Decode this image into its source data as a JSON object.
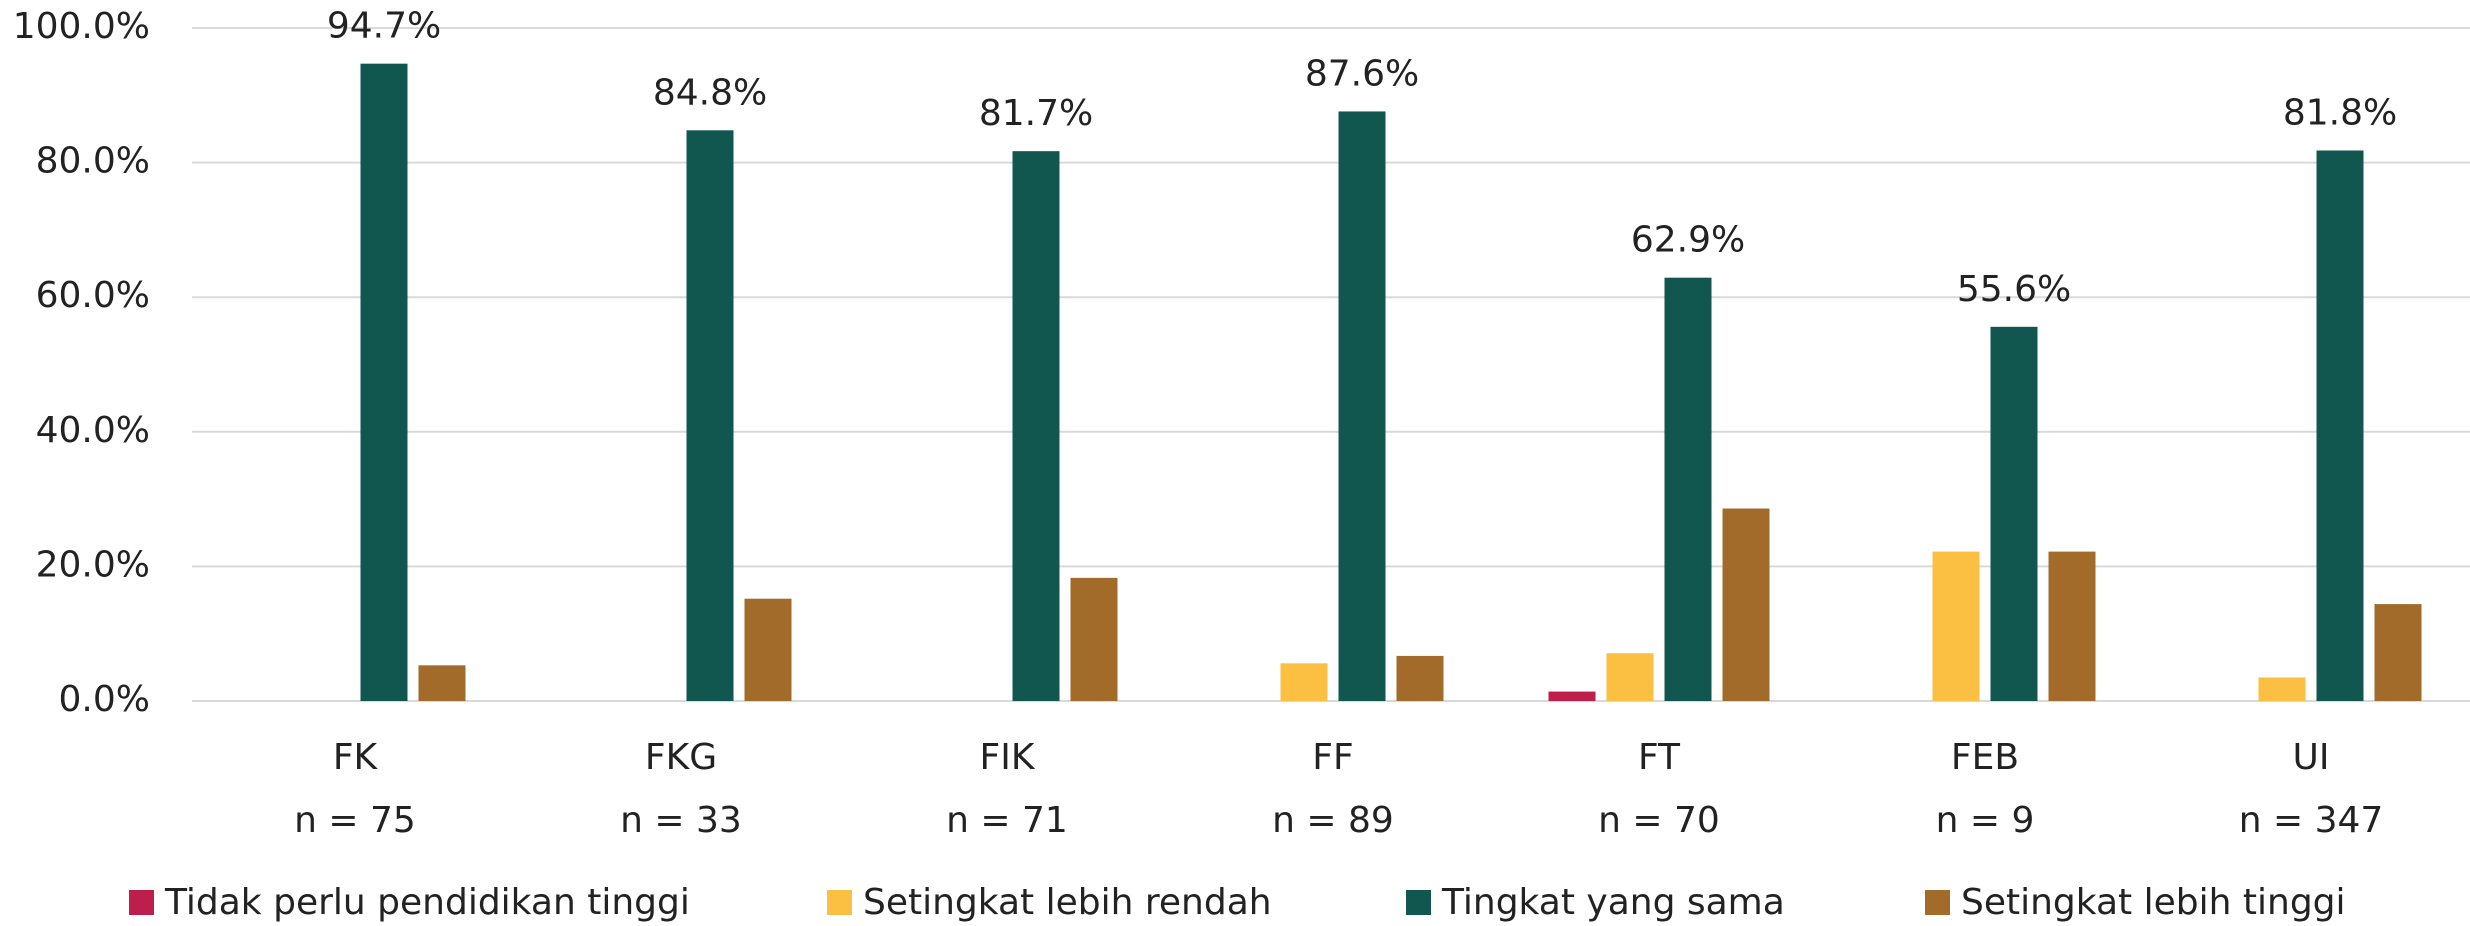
{
  "chart_data": {
    "type": "bar",
    "categories": [
      "FK",
      "FKG",
      "FIK",
      "FF",
      "FT",
      "FEB",
      "UI"
    ],
    "n_labels": [
      "n = 75",
      "n = 33",
      "n = 71",
      "n = 89",
      "n = 70",
      "n = 9",
      "n = 347"
    ],
    "series": [
      {
        "name": "Tidak perlu pendidikan tinggi",
        "color": "#be1e4b",
        "values": [
          0,
          0,
          0,
          0,
          1.4,
          0,
          0
        ]
      },
      {
        "name": "Setingkat lebih rendah",
        "color": "#fbc042",
        "values": [
          0,
          0,
          0,
          5.6,
          7.1,
          22.2,
          3.5
        ]
      },
      {
        "name": "Tingkat yang sama",
        "color": "#125650",
        "values": [
          94.7,
          84.8,
          81.7,
          87.6,
          62.9,
          55.6,
          81.8
        ],
        "value_labels": [
          "94.7%",
          "84.8%",
          "81.7%",
          "87.6%",
          "62.9%",
          "55.6%",
          "81.8%"
        ]
      },
      {
        "name": "Setingkat lebih tinggi",
        "color": "#a26b2a",
        "values": [
          5.3,
          15.2,
          18.3,
          6.7,
          28.6,
          22.2,
          14.4
        ]
      }
    ],
    "ylim": [
      0,
      100
    ],
    "yticks": [
      {
        "value": 0,
        "label": "0.0%"
      },
      {
        "value": 20,
        "label": "20.0%"
      },
      {
        "value": 40,
        "label": "40.0%"
      },
      {
        "value": 60,
        "label": "60.0%"
      },
      {
        "value": 80,
        "label": "80.0%"
      },
      {
        "value": 100,
        "label": "100.0%"
      }
    ],
    "grid": true,
    "legend": "bottom"
  }
}
